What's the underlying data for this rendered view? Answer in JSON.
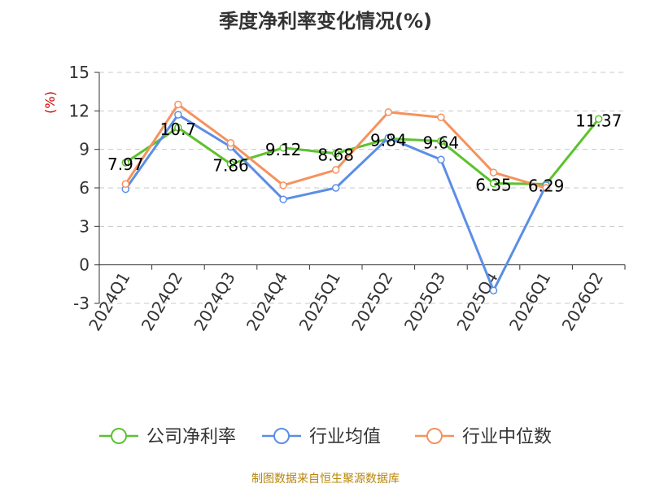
{
  "title": "季度净利率变化情况(%)",
  "footer": "制图数据来自恒生聚源数据库",
  "chart_data": {
    "type": "line",
    "title": "季度净利率变化情况(%)",
    "ylabel": "(%)",
    "xlabel": "",
    "ylim": [
      -3,
      15
    ],
    "yticks": [
      -3,
      0,
      3,
      6,
      9,
      12,
      15
    ],
    "grid": true,
    "legend_position": "bottom",
    "categories": [
      "2024Q1",
      "2024Q2",
      "2024Q3",
      "2024Q4",
      "2025Q1",
      "2025Q2",
      "2025Q3",
      "2025Q4",
      "2026Q1",
      "2026Q2"
    ],
    "series": [
      {
        "name": "公司净利率",
        "color": "#5cc22f",
        "values": [
          7.97,
          10.7,
          7.86,
          9.12,
          8.68,
          9.84,
          9.64,
          6.35,
          6.29,
          11.37
        ],
        "labels": [
          "7.97",
          "10.7",
          "7.86",
          "9.12",
          "8.68",
          "9.84",
          "9.64",
          "6.35",
          "6.29",
          "11.37"
        ]
      },
      {
        "name": "行业均值",
        "color": "#5b8ee6",
        "values": [
          5.9,
          11.7,
          9.2,
          5.1,
          6.0,
          9.9,
          8.2,
          -2.0,
          6.2,
          null
        ]
      },
      {
        "name": "行业中位数",
        "color": "#f5925e",
        "values": [
          6.3,
          12.5,
          9.5,
          6.2,
          7.4,
          11.9,
          11.5,
          7.2,
          6.0,
          null
        ]
      }
    ]
  }
}
